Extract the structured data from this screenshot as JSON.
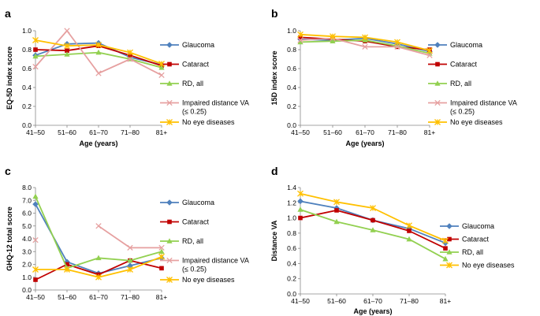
{
  "chart_data": [
    {
      "panel": "a",
      "type": "line",
      "categories": [
        "41–50",
        "51–60",
        "61–70",
        "71–80",
        "81+"
      ],
      "xlabel": "Age (years)",
      "ylabel": "EQ-5D index score",
      "ylim": [
        0,
        1.0
      ],
      "ystep": 0.2,
      "ydecimals": 1,
      "grid": false,
      "legend_position": "right",
      "series": [
        {
          "name": "Glaucoma",
          "color": "#4f81bd",
          "marker": "diamond",
          "values": [
            0.74,
            0.86,
            0.87,
            0.72,
            0.64
          ]
        },
        {
          "name": "Cataract",
          "color": "#c00000",
          "marker": "square",
          "values": [
            0.8,
            0.79,
            0.84,
            0.74,
            0.63
          ]
        },
        {
          "name": "RD, all",
          "color": "#92d050",
          "marker": "triangle",
          "values": [
            0.73,
            0.75,
            0.77,
            0.7,
            0.61
          ]
        },
        {
          "name": "Impaired distance VA",
          "name_line2": "(≤ 0.25)",
          "color": "#e6a0a0",
          "marker": "x",
          "values": [
            0.62,
            1.0,
            0.55,
            0.7,
            0.53
          ]
        },
        {
          "name": "No eye diseases",
          "color": "#ffc000",
          "marker": "star",
          "values": [
            0.9,
            0.84,
            0.85,
            0.77,
            0.65
          ]
        }
      ]
    },
    {
      "panel": "b",
      "type": "line",
      "categories": [
        "41–50",
        "51–60",
        "61–70",
        "71–80",
        "81+"
      ],
      "xlabel": "Age (years)",
      "ylabel": "15D index score",
      "ylim": [
        0,
        1.0
      ],
      "ystep": 0.2,
      "ydecimals": 1,
      "grid": false,
      "legend_position": "right",
      "series": [
        {
          "name": "Glaucoma",
          "color": "#4f81bd",
          "marker": "diamond",
          "values": [
            0.91,
            0.9,
            0.92,
            0.86,
            0.78
          ]
        },
        {
          "name": "Cataract",
          "color": "#c00000",
          "marker": "square",
          "values": [
            0.93,
            0.91,
            0.89,
            0.83,
            0.8
          ]
        },
        {
          "name": "RD, all",
          "color": "#92d050",
          "marker": "triangle",
          "values": [
            0.88,
            0.89,
            0.9,
            0.84,
            0.76
          ]
        },
        {
          "name": "Impaired distance VA",
          "name_line2": "(≤ 0.25)",
          "color": "#e6a0a0",
          "marker": "x",
          "values": [
            0.9,
            0.92,
            0.83,
            0.83,
            0.74
          ]
        },
        {
          "name": "No eye diseases",
          "color": "#ffc000",
          "marker": "star",
          "values": [
            0.96,
            0.94,
            0.93,
            0.88,
            0.79
          ]
        }
      ]
    },
    {
      "panel": "c",
      "type": "line",
      "categories": [
        "41–50",
        "51–60",
        "61–70",
        "71–80",
        "81+"
      ],
      "xlabel": "",
      "ylabel": "GHQ-12 total score",
      "ylim": [
        0,
        8.0
      ],
      "ystep": 1.0,
      "ydecimals": 1,
      "grid": false,
      "legend_position": "right",
      "series": [
        {
          "name": "Glaucoma",
          "color": "#4f81bd",
          "marker": "diamond",
          "values": [
            6.7,
            2.2,
            1.3,
            1.9,
            2.5
          ]
        },
        {
          "name": "Cataract",
          "color": "#c00000",
          "marker": "square",
          "values": [
            0.8,
            2.0,
            1.2,
            2.3,
            1.7
          ]
        },
        {
          "name": "RD, all",
          "color": "#92d050",
          "marker": "triangle",
          "values": [
            7.3,
            1.7,
            2.5,
            2.3,
            3.0
          ]
        },
        {
          "name": "Impaired distance VA",
          "name_line2": "(≤ 0.25)",
          "color": "#e6a0a0",
          "marker": "x",
          "values": [
            3.9,
            null,
            5.0,
            3.3,
            3.3
          ]
        },
        {
          "name": "No eye diseases",
          "color": "#ffc000",
          "marker": "star",
          "values": [
            1.6,
            1.6,
            1.0,
            1.6,
            2.6
          ]
        }
      ]
    },
    {
      "panel": "d",
      "type": "line",
      "categories": [
        "41–50",
        "51–60",
        "61–70",
        "71–80",
        "81+"
      ],
      "xlabel": "Age (years)",
      "ylabel": "Distance VA",
      "ylim": [
        0,
        1.4
      ],
      "ystep": 0.2,
      "ydecimals": 1,
      "grid": false,
      "legend_position": "right",
      "series": [
        {
          "name": "Glaucoma",
          "color": "#4f81bd",
          "marker": "diamond",
          "values": [
            1.22,
            1.13,
            0.97,
            0.86,
            0.67
          ]
        },
        {
          "name": "Cataract",
          "color": "#c00000",
          "marker": "square",
          "values": [
            1.0,
            1.1,
            0.97,
            0.83,
            0.6
          ]
        },
        {
          "name": "RD, all",
          "color": "#92d050",
          "marker": "triangle",
          "values": [
            1.11,
            0.95,
            0.84,
            0.72,
            0.46
          ]
        },
        {
          "name": "No eye diseases",
          "color": "#ffc000",
          "marker": "star",
          "values": [
            1.32,
            1.21,
            1.13,
            0.9,
            0.7
          ]
        }
      ]
    }
  ]
}
